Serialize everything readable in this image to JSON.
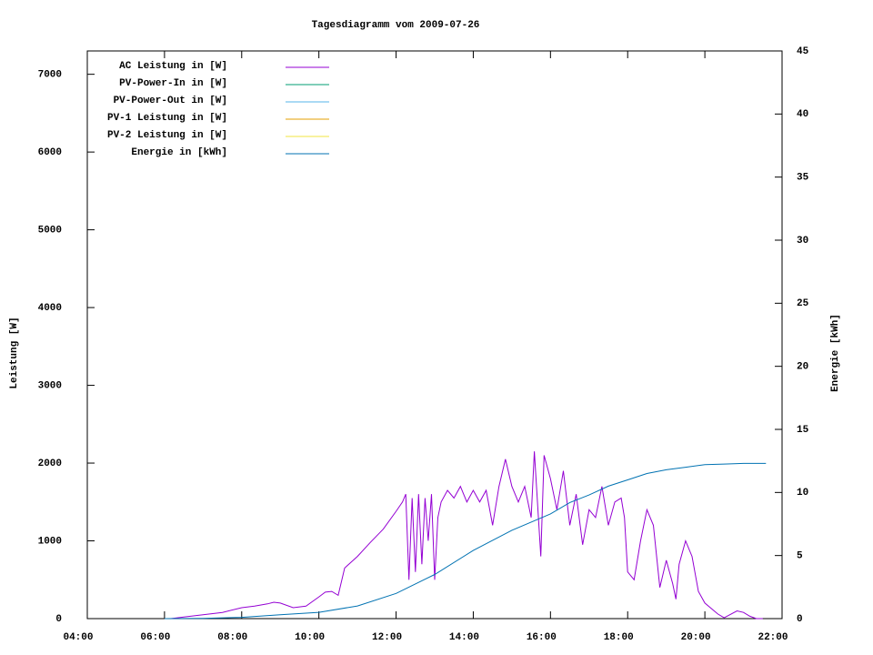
{
  "chart_data": {
    "type": "line",
    "title": "Tagesdiagramm vom 2009-07-26",
    "y_label": "Leistung [W]",
    "y2_label": "Energie [kWh]",
    "xlim": [
      "04:00",
      "22:00"
    ],
    "xticks": [
      "04:00",
      "06:00",
      "08:00",
      "10:00",
      "12:00",
      "14:00",
      "16:00",
      "18:00",
      "20:00",
      "22:00"
    ],
    "ylim": [
      0,
      7300
    ],
    "yticks": [
      0,
      1000,
      2000,
      3000,
      4000,
      5000,
      6000,
      7000
    ],
    "y2lim": [
      0,
      45
    ],
    "y2ticks": [
      0,
      5,
      10,
      15,
      20,
      25,
      30,
      35,
      40,
      45
    ],
    "legend": "top-left",
    "series": [
      {
        "name": "AC Leistung in [W]",
        "color": "#9400d3",
        "x": [
          "06:10",
          "06:30",
          "07:00",
          "07:30",
          "08:00",
          "08:20",
          "08:40",
          "08:50",
          "09:00",
          "09:20",
          "09:40",
          "10:00",
          "10:10",
          "10:20",
          "10:30",
          "10:40",
          "11:00",
          "11:20",
          "11:40",
          "12:00",
          "12:10",
          "12:15",
          "12:20",
          "12:25",
          "12:30",
          "12:35",
          "12:40",
          "12:45",
          "12:50",
          "12:55",
          "13:00",
          "13:05",
          "13:10",
          "13:20",
          "13:30",
          "13:40",
          "13:50",
          "14:00",
          "14:10",
          "14:20",
          "14:30",
          "14:40",
          "14:50",
          "15:00",
          "15:10",
          "15:20",
          "15:30",
          "15:35",
          "15:45",
          "15:50",
          "16:00",
          "16:10",
          "16:20",
          "16:30",
          "16:40",
          "16:50",
          "17:00",
          "17:10",
          "17:20",
          "17:30",
          "17:40",
          "17:50",
          "17:55",
          "18:00",
          "18:10",
          "18:20",
          "18:30",
          "18:40",
          "18:50",
          "19:00",
          "19:10",
          "19:15",
          "19:20",
          "19:30",
          "19:40",
          "19:50",
          "20:00",
          "20:20",
          "20:30",
          "20:50",
          "21:00",
          "21:10",
          "21:20",
          "21:30"
        ],
        "values": [
          0,
          20,
          50,
          80,
          140,
          160,
          190,
          210,
          200,
          140,
          160,
          280,
          340,
          350,
          300,
          650,
          800,
          980,
          1150,
          1380,
          1500,
          1600,
          500,
          1550,
          600,
          1600,
          700,
          1550,
          1000,
          1600,
          500,
          1300,
          1500,
          1650,
          1550,
          1700,
          1500,
          1650,
          1500,
          1650,
          1200,
          1700,
          2050,
          1700,
          1500,
          1700,
          1300,
          2150,
          800,
          2100,
          1800,
          1400,
          1900,
          1200,
          1600,
          950,
          1400,
          1300,
          1700,
          1200,
          1500,
          1550,
          1300,
          600,
          500,
          1000,
          1400,
          1200,
          400,
          750,
          450,
          250,
          700,
          1000,
          800,
          350,
          200,
          60,
          10,
          100,
          80,
          30,
          0,
          0
        ]
      },
      {
        "name": "PV-Power-In in [W]",
        "color": "#009e73",
        "x": [],
        "values": []
      },
      {
        "name": "PV-Power-Out in [W]",
        "color": "#56b4e9",
        "x": [],
        "values": []
      },
      {
        "name": "PV-1 Leistung in [W]",
        "color": "#e69f00",
        "x": [],
        "values": []
      },
      {
        "name": "PV-2 Leistung in [W]",
        "color": "#f0e442",
        "x": [],
        "values": []
      },
      {
        "name": "Energie in [kWh]",
        "color": "#0072b2",
        "axis": "y2",
        "x": [
          "06:00",
          "07:00",
          "08:00",
          "09:00",
          "10:00",
          "11:00",
          "12:00",
          "13:00",
          "14:00",
          "15:00",
          "16:00",
          "16:30",
          "17:00",
          "17:30",
          "18:00",
          "18:30",
          "19:00",
          "19:30",
          "20:00",
          "20:30",
          "21:00",
          "21:35"
        ],
        "values": [
          0,
          0.02,
          0.1,
          0.3,
          0.5,
          1.0,
          2.0,
          3.5,
          5.4,
          7.0,
          8.3,
          9.2,
          9.8,
          10.5,
          11.0,
          11.5,
          11.8,
          12.0,
          12.2,
          12.25,
          12.3,
          12.3
        ]
      }
    ]
  }
}
